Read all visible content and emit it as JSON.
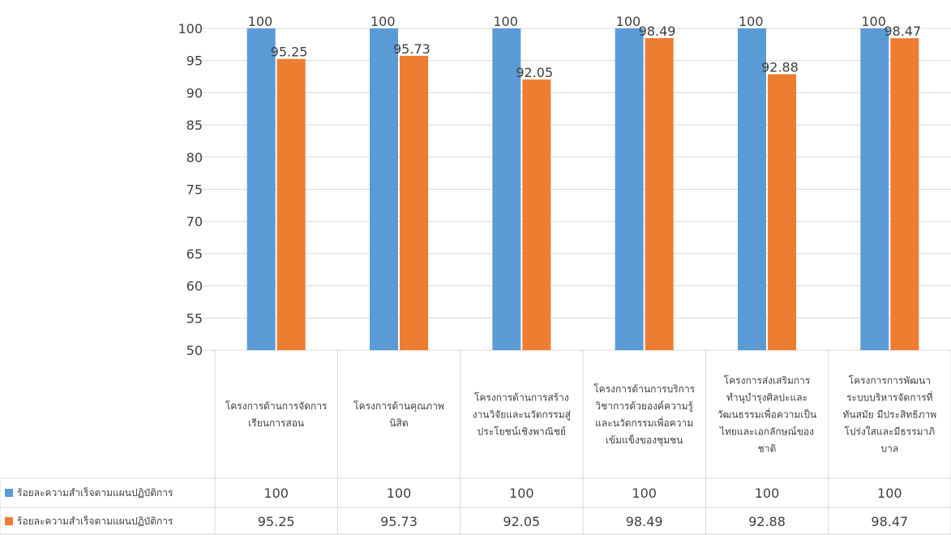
{
  "chart_data": {
    "type": "bar",
    "title": "",
    "xlabel": "",
    "ylabel": "",
    "ylim": [
      50,
      100
    ],
    "ytick_step": 5,
    "grid": true,
    "legend_placement": "data-table",
    "data_table": true,
    "categories": [
      [
        "โครงการด้านการจัดการ",
        "เรียนการสอน"
      ],
      [
        "โครงการด้านคุณภาพ",
        "นิสิต"
      ],
      [
        "โครงการด้านการสร้าง",
        "งานวิจัยและนวัตกรรมสู่",
        "ประโยชน์เชิงพาณิชย์"
      ],
      [
        "โครงการด้านการบริการ",
        "วิชาการด้วยองค์ความรู้",
        "และนวัตกรรมเพื่อความ",
        "เข้มแข็งของชุมชน"
      ],
      [
        "โครงการส่งเสริมการ",
        "ทำนุบำรุงศิลปะและ",
        "วัฒนธรรมเพื่อความเป็น",
        "ไทยและเอกลักษณ์ของ",
        "ชาติ"
      ],
      [
        "โครงการการพัฒนา",
        "ระบบบริหารจัดการที่",
        "ทันสมัย มีประสิทธิภาพ",
        "โปร่งใสและมีธรรมาภิ",
        "บาล"
      ]
    ],
    "series": [
      {
        "name": "ร้อยละความสำเร็จตามแผนปฏิบัติการ",
        "color": "#5B9BD5",
        "values": [
          100,
          100,
          100,
          100,
          100,
          100
        ],
        "labels": [
          "100",
          "100",
          "100",
          "100",
          "100",
          "100"
        ]
      },
      {
        "name": "ร้อยละความสำเร็จตามแผนปฏิบัติการ",
        "color": "#ED7D31",
        "values": [
          95.25,
          95.73,
          92.05,
          98.49,
          92.88,
          98.47
        ],
        "labels": [
          "95.25",
          "95.73",
          "92.05",
          "98.49",
          "92.88",
          "98.47"
        ]
      }
    ],
    "gridline_color": "#d9d9d9"
  }
}
